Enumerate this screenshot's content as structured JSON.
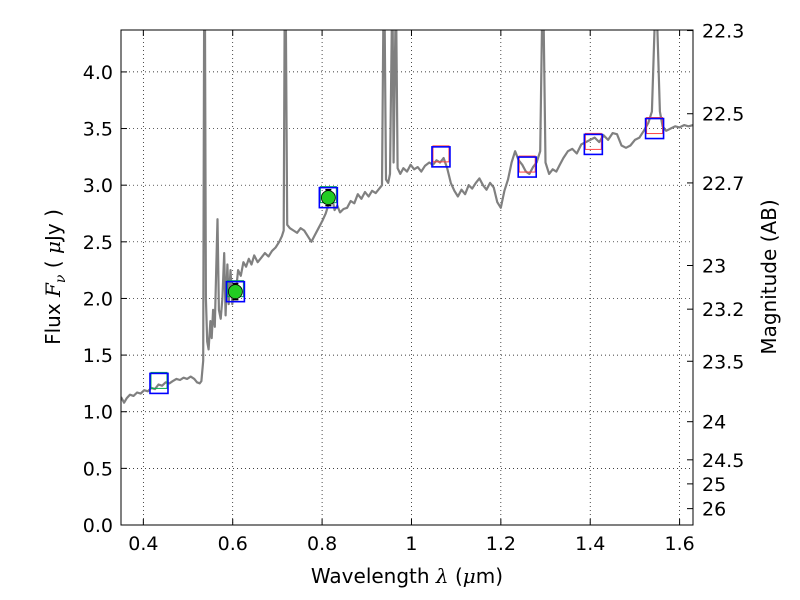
{
  "chart_data": {
    "type": "line",
    "xlabel": {
      "pre": "Wavelength  ",
      "sym": "λ",
      "open": " (",
      "mu": "μ",
      "unit": "m)"
    },
    "ylabel": {
      "pre": "Flux  ",
      "sym": "F",
      "sub": "ν",
      "open": "  ( ",
      "mu": "μ",
      "unit": "Jy )"
    },
    "y2label": "Magnitude (AB)",
    "xlim": [
      0.35,
      1.63
    ],
    "ylim": [
      0.0,
      4.37
    ],
    "grid": true,
    "xticks": [
      {
        "v": 0.4,
        "label": "0.4"
      },
      {
        "v": 0.6,
        "label": "0.6"
      },
      {
        "v": 0.8,
        "label": "0.8"
      },
      {
        "v": 1.0,
        "label": "1"
      },
      {
        "v": 1.2,
        "label": "1.2"
      },
      {
        "v": 1.4,
        "label": "1.4"
      },
      {
        "v": 1.6,
        "label": "1.6"
      }
    ],
    "yticks": [
      {
        "v": 0.0,
        "label": "0.0"
      },
      {
        "v": 0.5,
        "label": "0.5"
      },
      {
        "v": 1.0,
        "label": "1.0"
      },
      {
        "v": 1.5,
        "label": "1.5"
      },
      {
        "v": 2.0,
        "label": "2.0"
      },
      {
        "v": 2.5,
        "label": "2.5"
      },
      {
        "v": 3.0,
        "label": "3.0"
      },
      {
        "v": 3.5,
        "label": "3.5"
      },
      {
        "v": 4.0,
        "label": "4.0"
      }
    ],
    "y2ticks": [
      {
        "mag": 22.3,
        "label": "22.3"
      },
      {
        "mag": 22.5,
        "label": "22.5"
      },
      {
        "mag": 22.7,
        "label": "22.7"
      },
      {
        "mag": 23.0,
        "label": "23"
      },
      {
        "mag": 23.2,
        "label": "23.2"
      },
      {
        "mag": 23.5,
        "label": "23.5"
      },
      {
        "mag": 24.0,
        "label": "24"
      },
      {
        "mag": 24.5,
        "label": "24.5"
      },
      {
        "mag": 25.0,
        "label": "25"
      },
      {
        "mag": 26.0,
        "label": "26"
      }
    ],
    "spectrum": {
      "color": "#808080",
      "points": [
        [
          0.35,
          1.13
        ],
        [
          0.357,
          1.08
        ],
        [
          0.363,
          1.12
        ],
        [
          0.37,
          1.15
        ],
        [
          0.378,
          1.14
        ],
        [
          0.386,
          1.17
        ],
        [
          0.394,
          1.16
        ],
        [
          0.402,
          1.19
        ],
        [
          0.41,
          1.18
        ],
        [
          0.418,
          1.21
        ],
        [
          0.426,
          1.2
        ],
        [
          0.434,
          1.24
        ],
        [
          0.442,
          1.23
        ],
        [
          0.45,
          1.26
        ],
        [
          0.458,
          1.25
        ],
        [
          0.466,
          1.27
        ],
        [
          0.474,
          1.29
        ],
        [
          0.482,
          1.28
        ],
        [
          0.49,
          1.3
        ],
        [
          0.498,
          1.29
        ],
        [
          0.506,
          1.31
        ],
        [
          0.514,
          1.29
        ],
        [
          0.52,
          1.26
        ],
        [
          0.526,
          1.25
        ],
        [
          0.53,
          1.27
        ],
        [
          0.534,
          1.45
        ],
        [
          0.536,
          4.4
        ],
        [
          0.538,
          4.4
        ],
        [
          0.54,
          2.0
        ],
        [
          0.543,
          1.62
        ],
        [
          0.546,
          1.55
        ],
        [
          0.55,
          1.8
        ],
        [
          0.553,
          1.65
        ],
        [
          0.556,
          1.9
        ],
        [
          0.56,
          1.75
        ],
        [
          0.563,
          2.25
        ],
        [
          0.566,
          2.7
        ],
        [
          0.569,
          1.9
        ],
        [
          0.573,
          1.82
        ],
        [
          0.577,
          2.0
        ],
        [
          0.581,
          2.4
        ],
        [
          0.584,
          1.85
        ],
        [
          0.588,
          2.3
        ],
        [
          0.591,
          1.95
        ],
        [
          0.595,
          2.25
        ],
        [
          0.599,
          1.95
        ],
        [
          0.603,
          2.1
        ],
        [
          0.607,
          2.05
        ],
        [
          0.612,
          2.25
        ],
        [
          0.618,
          2.2
        ],
        [
          0.624,
          2.32
        ],
        [
          0.63,
          2.28
        ],
        [
          0.636,
          2.35
        ],
        [
          0.642,
          2.3
        ],
        [
          0.648,
          2.38
        ],
        [
          0.656,
          2.32
        ],
        [
          0.664,
          2.36
        ],
        [
          0.672,
          2.4
        ],
        [
          0.68,
          2.37
        ],
        [
          0.688,
          2.42
        ],
        [
          0.696,
          2.45
        ],
        [
          0.704,
          2.5
        ],
        [
          0.71,
          2.55
        ],
        [
          0.714,
          2.6
        ],
        [
          0.716,
          4.4
        ],
        [
          0.719,
          4.4
        ],
        [
          0.722,
          2.65
        ],
        [
          0.728,
          2.62
        ],
        [
          0.736,
          2.6
        ],
        [
          0.744,
          2.58
        ],
        [
          0.752,
          2.62
        ],
        [
          0.76,
          2.6
        ],
        [
          0.768,
          2.55
        ],
        [
          0.776,
          2.5
        ],
        [
          0.784,
          2.56
        ],
        [
          0.792,
          2.62
        ],
        [
          0.8,
          2.68
        ],
        [
          0.808,
          2.75
        ],
        [
          0.816,
          2.85
        ],
        [
          0.822,
          2.9
        ],
        [
          0.828,
          2.78
        ],
        [
          0.834,
          2.82
        ],
        [
          0.84,
          2.76
        ],
        [
          0.848,
          2.79
        ],
        [
          0.856,
          2.8
        ],
        [
          0.864,
          2.86
        ],
        [
          0.872,
          2.84
        ],
        [
          0.88,
          2.92
        ],
        [
          0.888,
          2.88
        ],
        [
          0.896,
          2.94
        ],
        [
          0.904,
          2.9
        ],
        [
          0.912,
          2.95
        ],
        [
          0.92,
          2.93
        ],
        [
          0.928,
          2.97
        ],
        [
          0.934,
          3.0
        ],
        [
          0.937,
          4.4
        ],
        [
          0.94,
          4.4
        ],
        [
          0.943,
          3.05
        ],
        [
          0.948,
          3.02
        ],
        [
          0.952,
          3.1
        ],
        [
          0.956,
          4.4
        ],
        [
          0.958,
          4.4
        ],
        [
          0.96,
          3.2
        ],
        [
          0.964,
          4.4
        ],
        [
          0.966,
          4.4
        ],
        [
          0.969,
          3.15
        ],
        [
          0.975,
          3.1
        ],
        [
          0.982,
          3.15
        ],
        [
          0.99,
          3.12
        ],
        [
          0.998,
          3.18
        ],
        [
          1.006,
          3.14
        ],
        [
          1.014,
          3.16
        ],
        [
          1.022,
          3.12
        ],
        [
          1.03,
          3.17
        ],
        [
          1.04,
          3.2
        ],
        [
          1.048,
          3.18
        ],
        [
          1.056,
          3.22
        ],
        [
          1.064,
          3.2
        ],
        [
          1.072,
          3.24
        ],
        [
          1.08,
          3.15
        ],
        [
          1.088,
          3.02
        ],
        [
          1.096,
          2.95
        ],
        [
          1.104,
          2.9
        ],
        [
          1.112,
          2.96
        ],
        [
          1.12,
          2.92
        ],
        [
          1.128,
          3.0
        ],
        [
          1.136,
          2.97
        ],
        [
          1.144,
          3.02
        ],
        [
          1.152,
          3.06
        ],
        [
          1.16,
          3.0
        ],
        [
          1.168,
          2.96
        ],
        [
          1.176,
          3.02
        ],
        [
          1.184,
          2.98
        ],
        [
          1.192,
          2.85
        ],
        [
          1.2,
          2.8
        ],
        [
          1.208,
          2.95
        ],
        [
          1.216,
          3.05
        ],
        [
          1.224,
          3.2
        ],
        [
          1.232,
          3.3
        ],
        [
          1.24,
          3.22
        ],
        [
          1.248,
          3.18
        ],
        [
          1.256,
          3.12
        ],
        [
          1.264,
          3.1
        ],
        [
          1.272,
          3.16
        ],
        [
          1.28,
          3.2
        ],
        [
          1.288,
          3.3
        ],
        [
          1.292,
          4.4
        ],
        [
          1.296,
          4.4
        ],
        [
          1.3,
          3.2
        ],
        [
          1.308,
          3.1
        ],
        [
          1.316,
          3.14
        ],
        [
          1.324,
          3.12
        ],
        [
          1.332,
          3.18
        ],
        [
          1.34,
          3.24
        ],
        [
          1.35,
          3.3
        ],
        [
          1.36,
          3.32
        ],
        [
          1.37,
          3.28
        ],
        [
          1.38,
          3.36
        ],
        [
          1.39,
          3.38
        ],
        [
          1.4,
          3.4
        ],
        [
          1.41,
          3.42
        ],
        [
          1.42,
          3.38
        ],
        [
          1.43,
          3.44
        ],
        [
          1.44,
          3.4
        ],
        [
          1.45,
          3.46
        ],
        [
          1.46,
          3.45
        ],
        [
          1.47,
          3.35
        ],
        [
          1.48,
          3.33
        ],
        [
          1.49,
          3.35
        ],
        [
          1.5,
          3.4
        ],
        [
          1.51,
          3.42
        ],
        [
          1.52,
          3.48
        ],
        [
          1.53,
          3.55
        ],
        [
          1.538,
          3.65
        ],
        [
          1.544,
          4.4
        ],
        [
          1.55,
          4.4
        ],
        [
          1.556,
          3.65
        ],
        [
          1.562,
          3.52
        ],
        [
          1.57,
          3.48
        ],
        [
          1.58,
          3.5
        ],
        [
          1.59,
          3.52
        ],
        [
          1.6,
          3.51
        ],
        [
          1.61,
          3.53
        ],
        [
          1.62,
          3.52
        ],
        [
          1.63,
          3.53
        ]
      ]
    },
    "photometry": [
      {
        "x": 0.435,
        "y": 1.25,
        "box_color": "#0000ff",
        "inner_color": "#00b050"
      },
      {
        "x": 0.606,
        "y": 2.06,
        "box_color": "#0000ff",
        "inner_color": "#00b050",
        "measured": true,
        "fill": "#22cc22",
        "err": 0.07
      },
      {
        "x": 0.814,
        "y": 2.89,
        "box_color": "#0000ff",
        "inner_color": "#00b050",
        "measured": true,
        "fill": "#22cc22",
        "err": 0.07
      },
      {
        "x": 1.066,
        "y": 3.25,
        "box_color": "#0000ff",
        "inner_color": "#ff4444"
      },
      {
        "x": 1.259,
        "y": 3.16,
        "box_color": "#0000ff",
        "inner_color": "#ff4444"
      },
      {
        "x": 1.407,
        "y": 3.36,
        "box_color": "#0000ff",
        "inner_color": "#ff4444"
      },
      {
        "x": 1.544,
        "y": 3.5,
        "box_color": "#0000ff",
        "inner_color": "#ff4444"
      }
    ]
  }
}
